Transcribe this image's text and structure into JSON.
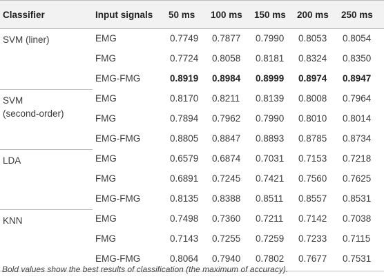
{
  "header": {
    "classifier": "Classifier",
    "input_signals": "Input signals",
    "windows": [
      "50 ms",
      "100 ms",
      "150 ms",
      "200 ms",
      "250 ms"
    ]
  },
  "groups": [
    {
      "classifier_lines": [
        "SVM (liner)"
      ],
      "rows": [
        {
          "signal": "EMG",
          "values": [
            "0.7749",
            "0.7877",
            "0.7990",
            "0.8053",
            "0.8054"
          ],
          "bold": false
        },
        {
          "signal": "FMG",
          "values": [
            "0.7724",
            "0.8058",
            "0.8181",
            "0.8324",
            "0.8350"
          ],
          "bold": false
        },
        {
          "signal": "EMG-FMG",
          "values": [
            "0.8919",
            "0.8984",
            "0.8999",
            "0.8974",
            "0.8947"
          ],
          "bold": true
        }
      ]
    },
    {
      "classifier_lines": [
        "SVM",
        "(second-order)"
      ],
      "rows": [
        {
          "signal": "EMG",
          "values": [
            "0.8170",
            "0.8211",
            "0.8139",
            "0.8008",
            "0.7964"
          ],
          "bold": false
        },
        {
          "signal": "FMG",
          "values": [
            "0.7894",
            "0.7962",
            "0.7990",
            "0.8010",
            "0.8014"
          ],
          "bold": false
        },
        {
          "signal": "EMG-FMG",
          "values": [
            "0.8805",
            "0.8847",
            "0.8893",
            "0.8785",
            "0.8734"
          ],
          "bold": false
        }
      ]
    },
    {
      "classifier_lines": [
        "LDA"
      ],
      "rows": [
        {
          "signal": "EMG",
          "values": [
            "0.6579",
            "0.6874",
            "0.7031",
            "0.7153",
            "0.7218"
          ],
          "bold": false
        },
        {
          "signal": "FMG",
          "values": [
            "0.6891",
            "0.7245",
            "0.7421",
            "0.7560",
            "0.7625"
          ],
          "bold": false
        },
        {
          "signal": "EMG-FMG",
          "values": [
            "0.8135",
            "0.8388",
            "0.8511",
            "0.8557",
            "0.8531"
          ],
          "bold": false
        }
      ]
    },
    {
      "classifier_lines": [
        "KNN"
      ],
      "rows": [
        {
          "signal": "EMG",
          "values": [
            "0.7498",
            "0.7360",
            "0.7211",
            "0.7142",
            "0.7038"
          ],
          "bold": false
        },
        {
          "signal": "FMG",
          "values": [
            "0.7143",
            "0.7255",
            "0.7259",
            "0.7233",
            "0.7115"
          ],
          "bold": false
        },
        {
          "signal": "EMG-FMG",
          "values": [
            "0.8064",
            "0.7940",
            "0.7802",
            "0.7677",
            "0.7531"
          ],
          "bold": false
        }
      ]
    }
  ],
  "footnote": "Bold values show the best results of classification (the maximum of accuracy)."
}
